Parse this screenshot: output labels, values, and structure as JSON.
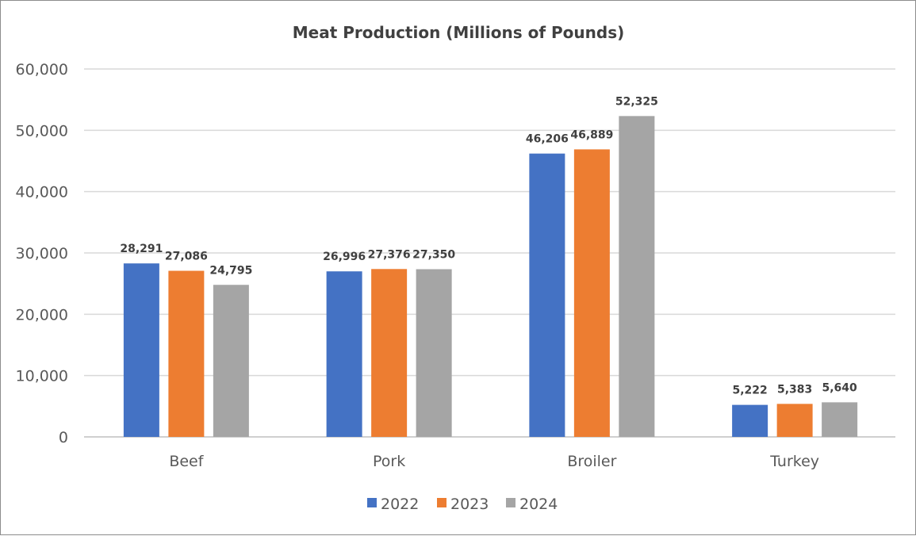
{
  "chart_data": {
    "type": "bar",
    "title": "Meat Production (Millions of Pounds)",
    "xlabel": "",
    "ylabel": "",
    "categories": [
      "Beef",
      "Pork",
      "Broiler",
      "Turkey"
    ],
    "series": [
      {
        "name": "2022",
        "color": "#4472C4",
        "values": [
          28291,
          26996,
          46206,
          5222
        ],
        "labels": [
          "28,291",
          "26,996",
          "46,206",
          "5,222"
        ]
      },
      {
        "name": "2023",
        "color": "#ED7D31",
        "values": [
          27086,
          27376,
          46889,
          5383
        ],
        "labels": [
          "27,086",
          "27,376",
          "46,889",
          "5,383"
        ]
      },
      {
        "name": "2024",
        "color": "#A5A5A5",
        "values": [
          24795,
          27350,
          52325,
          5640
        ],
        "labels": [
          "24,795",
          "27,350",
          "52,325",
          "5,640"
        ]
      }
    ],
    "ylim": [
      0,
      60000
    ],
    "yticks": [
      0,
      10000,
      20000,
      30000,
      40000,
      50000,
      60000
    ],
    "ytick_labels": [
      "0",
      "10,000",
      "20,000",
      "30,000",
      "40,000",
      "50,000",
      "60,000"
    ],
    "grid": true,
    "legend_position": "bottom"
  }
}
